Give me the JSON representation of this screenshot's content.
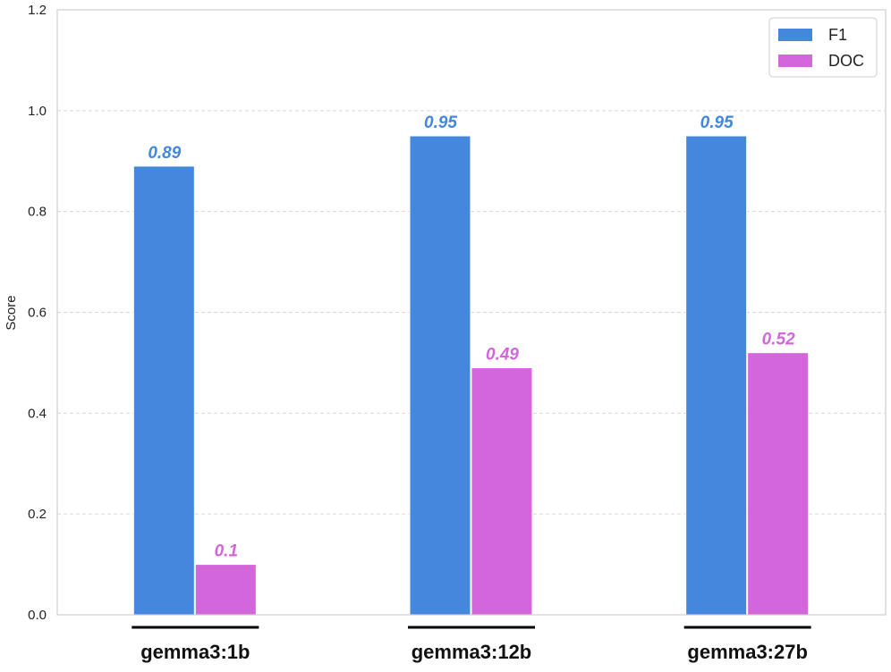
{
  "chart_data": {
    "type": "bar",
    "title": "",
    "xlabel": "",
    "ylabel": "Score",
    "categories": [
      "gemma3:1b",
      "gemma3:12b",
      "gemma3:27b"
    ],
    "series": [
      {
        "name": "F1",
        "values": [
          0.89,
          0.95,
          0.95
        ],
        "color": "#4488dd"
      },
      {
        "name": "DOC",
        "values": [
          0.1,
          0.49,
          0.52
        ],
        "color": "#d466dc"
      }
    ],
    "data_labels": {
      "F1": [
        "0.89",
        "0.95",
        "0.95"
      ],
      "DOC": [
        "0.1",
        "0.49",
        "0.52"
      ]
    },
    "ylim": [
      0,
      1.2
    ],
    "yticks": [
      "0.0",
      "0.2",
      "0.4",
      "0.6",
      "0.8",
      "1.0",
      "1.2"
    ],
    "grid": true,
    "legend_position": "top-right"
  }
}
